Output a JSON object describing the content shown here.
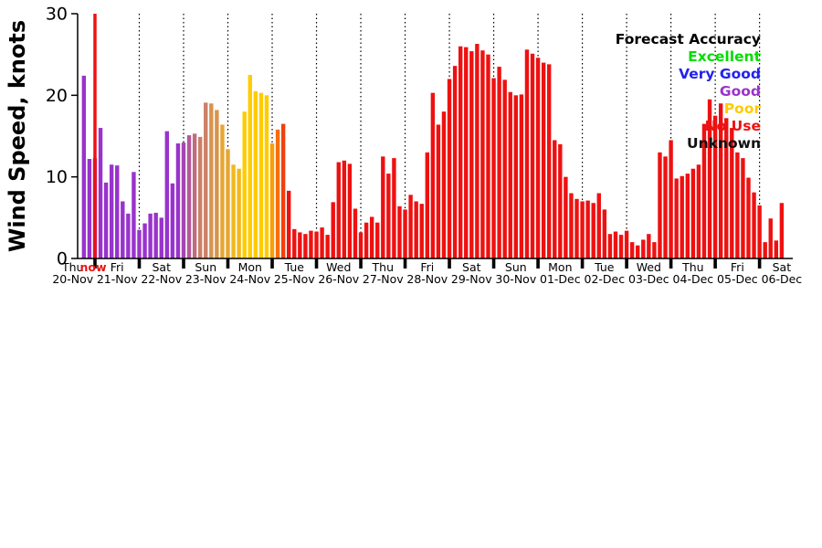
{
  "chart_data": {
    "type": "bar",
    "title": "",
    "ylabel": "Wind Speed, knots",
    "unit": "knots",
    "ylim": [
      0,
      30
    ],
    "yticks": [
      0,
      10,
      20,
      30
    ],
    "grid": "dotted vertical line at each midnight",
    "x_axis": {
      "slots_per_day": 8,
      "slot_hours": 3,
      "xlim_slots": [
        4.87,
        134
      ],
      "days": [
        {
          "name": "Thu",
          "date": "20-Nov"
        },
        {
          "name": "Fri",
          "date": "21-Nov"
        },
        {
          "name": "Sat",
          "date": "22-Nov"
        },
        {
          "name": "Sun",
          "date": "23-Nov"
        },
        {
          "name": "Mon",
          "date": "24-Nov"
        },
        {
          "name": "Tue",
          "date": "25-Nov"
        },
        {
          "name": "Wed",
          "date": "26-Nov"
        },
        {
          "name": "Thu",
          "date": "27-Nov"
        },
        {
          "name": "Fri",
          "date": "28-Nov"
        },
        {
          "name": "Sat",
          "date": "29-Nov"
        },
        {
          "name": "Sun",
          "date": "30-Nov"
        },
        {
          "name": "Mon",
          "date": "01-Dec"
        },
        {
          "name": "Tue",
          "date": "02-Dec"
        },
        {
          "name": "Wed",
          "date": "03-Dec"
        },
        {
          "name": "Thu",
          "date": "04-Dec"
        },
        {
          "name": "Fri",
          "date": "05-Dec"
        },
        {
          "name": "Sat",
          "date": "06-Dec"
        }
      ]
    },
    "now_marker": {
      "slot": 8,
      "label": "now",
      "color": "#ee1111"
    },
    "legend": {
      "title": "Forecast Accuracy",
      "position": "top-right",
      "title_color": "#000000",
      "entries": [
        {
          "label": "Excellent",
          "color": "#00dd00"
        },
        {
          "label": "Very Good",
          "color": "#2222ee"
        },
        {
          "label": "Good",
          "color": "#9933cc"
        },
        {
          "label": "Poor",
          "color": "#ffcc00"
        },
        {
          "label": "No Use",
          "color": "#ee1111"
        },
        {
          "label": "Unknown",
          "color": "#111111"
        }
      ]
    },
    "color_encoding": "bar color encodes forecast accuracy, interpolated Good(purple) -> Poor(yellow) -> No Use(red)",
    "bars": [
      [
        6,
        22.4,
        "#9933cc"
      ],
      [
        7,
        12.2,
        "#9933cc"
      ],
      [
        8,
        12.3,
        "#9933cc"
      ],
      [
        9,
        16.0,
        "#9933cc"
      ],
      [
        10,
        9.3,
        "#9933cc"
      ],
      [
        11,
        11.5,
        "#9933cc"
      ],
      [
        12,
        11.4,
        "#9933cc"
      ],
      [
        13,
        7.0,
        "#9933cc"
      ],
      [
        14,
        5.5,
        "#9933cc"
      ],
      [
        15,
        10.6,
        "#9933cc"
      ],
      [
        16,
        3.5,
        "#9933cc"
      ],
      [
        17,
        4.3,
        "#9933cc"
      ],
      [
        18,
        5.5,
        "#9933cc"
      ],
      [
        19,
        5.6,
        "#9933cc"
      ],
      [
        20,
        5.0,
        "#9933cc"
      ],
      [
        21,
        15.6,
        "#9933cc"
      ],
      [
        22,
        9.2,
        "#9933cc"
      ],
      [
        23,
        14.1,
        "#9933cc"
      ],
      [
        24,
        14.2,
        "#a646b3"
      ],
      [
        25,
        15.1,
        "#b35999"
      ],
      [
        26,
        15.3,
        "#bf6c80"
      ],
      [
        27,
        14.9,
        "#cc8066"
      ],
      [
        28,
        19.1,
        "#cc8066"
      ],
      [
        29,
        19.0,
        "#d9934d"
      ],
      [
        30,
        18.2,
        "#d9934d"
      ],
      [
        31,
        16.4,
        "#e6a633"
      ],
      [
        32,
        13.4,
        "#e6a633"
      ],
      [
        33,
        11.5,
        "#f2b91a"
      ],
      [
        34,
        11.0,
        "#f2b91a"
      ],
      [
        35,
        18.0,
        "#ffcc00"
      ],
      [
        36,
        22.5,
        "#ffcc00"
      ],
      [
        37,
        20.5,
        "#ffcc00"
      ],
      [
        38,
        20.3,
        "#ffcc00"
      ],
      [
        39,
        20.0,
        "#ffcc00"
      ],
      [
        40,
        14.1,
        "#fb9d04"
      ],
      [
        41,
        15.8,
        "#f76f09"
      ],
      [
        42,
        16.5,
        "#f2400d"
      ],
      [
        43,
        8.3,
        "#ee1111"
      ],
      [
        44,
        3.6,
        "#ee1111"
      ],
      [
        45,
        3.2,
        "#ee1111"
      ],
      [
        46,
        3.0,
        "#ee1111"
      ],
      [
        47,
        3.4,
        "#ee1111"
      ],
      [
        48,
        3.3,
        "#ee1111"
      ],
      [
        49,
        3.8,
        "#ee1111"
      ],
      [
        50,
        2.9,
        "#ee1111"
      ],
      [
        51,
        6.9,
        "#ee1111"
      ],
      [
        52,
        11.8,
        "#ee1111"
      ],
      [
        53,
        12.0,
        "#ee1111"
      ],
      [
        54,
        11.6,
        "#ee1111"
      ],
      [
        55,
        6.1,
        "#ee1111"
      ],
      [
        56,
        3.2,
        "#ee1111"
      ],
      [
        57,
        4.4,
        "#ee1111"
      ],
      [
        58,
        5.1,
        "#ee1111"
      ],
      [
        59,
        4.4,
        "#ee1111"
      ],
      [
        60,
        12.5,
        "#ee1111"
      ],
      [
        61,
        10.4,
        "#ee1111"
      ],
      [
        62,
        12.3,
        "#ee1111"
      ],
      [
        63,
        6.4,
        "#ee1111"
      ],
      [
        64,
        6.0,
        "#ee1111"
      ],
      [
        65,
        7.8,
        "#ee1111"
      ],
      [
        66,
        7.0,
        "#ee1111"
      ],
      [
        67,
        6.7,
        "#ee1111"
      ],
      [
        68,
        13.0,
        "#ee1111"
      ],
      [
        69,
        20.3,
        "#ee1111"
      ],
      [
        70,
        16.4,
        "#ee1111"
      ],
      [
        71,
        18.0,
        "#ee1111"
      ],
      [
        72,
        22.0,
        "#ee1111"
      ],
      [
        73,
        23.6,
        "#ee1111"
      ],
      [
        74,
        26.0,
        "#ee1111"
      ],
      [
        75,
        25.9,
        "#ee1111"
      ],
      [
        76,
        25.4,
        "#ee1111"
      ],
      [
        77,
        26.3,
        "#ee1111"
      ],
      [
        78,
        25.5,
        "#ee1111"
      ],
      [
        79,
        25.0,
        "#ee1111"
      ],
      [
        80,
        22.1,
        "#ee1111"
      ],
      [
        81,
        23.5,
        "#ee1111"
      ],
      [
        82,
        21.9,
        "#ee1111"
      ],
      [
        83,
        20.4,
        "#ee1111"
      ],
      [
        84,
        20.0,
        "#ee1111"
      ],
      [
        85,
        20.1,
        "#ee1111"
      ],
      [
        86,
        25.6,
        "#ee1111"
      ],
      [
        87,
        25.1,
        "#ee1111"
      ],
      [
        88,
        24.6,
        "#ee1111"
      ],
      [
        89,
        24.0,
        "#ee1111"
      ],
      [
        90,
        23.8,
        "#ee1111"
      ],
      [
        91,
        14.5,
        "#ee1111"
      ],
      [
        92,
        14.0,
        "#ee1111"
      ],
      [
        93,
        10.0,
        "#ee1111"
      ],
      [
        94,
        8.0,
        "#ee1111"
      ],
      [
        95,
        7.3,
        "#ee1111"
      ],
      [
        96,
        7.0,
        "#ee1111"
      ],
      [
        97,
        7.1,
        "#ee1111"
      ],
      [
        98,
        6.8,
        "#ee1111"
      ],
      [
        99,
        8.0,
        "#ee1111"
      ],
      [
        100,
        6.0,
        "#ee1111"
      ],
      [
        101,
        3.0,
        "#ee1111"
      ],
      [
        102,
        3.3,
        "#ee1111"
      ],
      [
        103,
        2.9,
        "#ee1111"
      ],
      [
        104,
        3.4,
        "#ee1111"
      ],
      [
        105,
        2.0,
        "#ee1111"
      ],
      [
        106,
        1.6,
        "#ee1111"
      ],
      [
        107,
        2.3,
        "#ee1111"
      ],
      [
        108,
        3.0,
        "#ee1111"
      ],
      [
        109,
        2.0,
        "#ee1111"
      ],
      [
        110,
        13.0,
        "#ee1111"
      ],
      [
        111,
        12.5,
        "#ee1111"
      ],
      [
        112,
        14.5,
        "#ee1111"
      ],
      [
        113,
        9.8,
        "#ee1111"
      ],
      [
        114,
        10.1,
        "#ee1111"
      ],
      [
        115,
        10.4,
        "#ee1111"
      ],
      [
        116,
        11.0,
        "#ee1111"
      ],
      [
        117,
        11.5,
        "#ee1111"
      ],
      [
        118,
        16.5,
        "#ee1111"
      ],
      [
        119,
        19.5,
        "#ee1111"
      ],
      [
        120,
        17.5,
        "#ee1111"
      ],
      [
        121,
        19.0,
        "#ee1111"
      ],
      [
        122,
        17.2,
        "#ee1111"
      ],
      [
        123,
        16.0,
        "#ee1111"
      ],
      [
        124,
        13.0,
        "#ee1111"
      ],
      [
        125,
        12.3,
        "#ee1111"
      ],
      [
        126,
        9.9,
        "#ee1111"
      ],
      [
        127,
        8.1,
        "#ee1111"
      ],
      [
        128,
        6.5,
        "#ee1111"
      ],
      [
        129,
        2.0,
        "#ee1111"
      ],
      [
        130,
        4.9,
        "#ee1111"
      ],
      [
        131,
        2.2,
        "#ee1111"
      ],
      [
        132,
        6.8,
        "#ee1111"
      ]
    ]
  }
}
